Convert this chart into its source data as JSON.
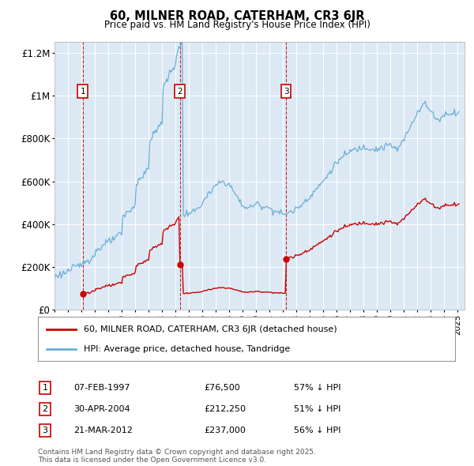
{
  "title": "60, MILNER ROAD, CATERHAM, CR3 6JR",
  "subtitle": "Price paid vs. HM Land Registry's House Price Index (HPI)",
  "background_color": "#ffffff",
  "plot_bg_color": "#dce9f5",
  "grid_color": "#ffffff",
  "hpi_color": "#6baed6",
  "price_color": "#cc0000",
  "legend_label_price": "60, MILNER ROAD, CATERHAM, CR3 6JR (detached house)",
  "legend_label_hpi": "HPI: Average price, detached house, Tandridge",
  "transactions": [
    {
      "num": 1,
      "date": "07-FEB-1997",
      "price": 76500,
      "year": 1997.1,
      "pct": "57% ↓ HPI"
    },
    {
      "num": 2,
      "date": "30-APR-2004",
      "price": 212250,
      "year": 2004.33,
      "pct": "51% ↓ HPI"
    },
    {
      "num": 3,
      "date": "21-MAR-2012",
      "price": 237000,
      "year": 2012.22,
      "pct": "56% ↓ HPI"
    }
  ],
  "footnote": "Contains HM Land Registry data © Crown copyright and database right 2025.\nThis data is licensed under the Open Government Licence v3.0.",
  "ylim": [
    0,
    1250000
  ],
  "yticks": [
    0,
    200000,
    400000,
    600000,
    800000,
    1000000,
    1200000
  ],
  "ytick_labels": [
    "£0",
    "£200K",
    "£400K",
    "£600K",
    "£800K",
    "£1M",
    "£1.2M"
  ],
  "xlim_start": 1995.0,
  "xlim_end": 2025.5
}
